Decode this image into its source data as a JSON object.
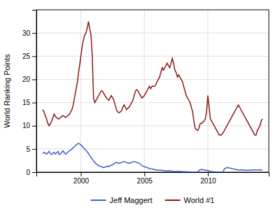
{
  "chart_data": {
    "type": "line",
    "ylabel": "World Ranking Points",
    "xlim": [
      1996.5,
      2014.8
    ],
    "xticks": [
      2000,
      2005,
      2010
    ],
    "ylim": [
      0,
      35
    ],
    "yticks": [
      0,
      5,
      10,
      15,
      20,
      25,
      30
    ],
    "grid": true,
    "legend": "bottom",
    "series": [
      {
        "name": "Jeff Maggert",
        "color": "#4060c8",
        "x": [
          1997.0,
          1997.1,
          1997.2,
          1997.3,
          1997.4,
          1997.5,
          1997.6,
          1997.7,
          1997.8,
          1997.9,
          1998.0,
          1998.1,
          1998.2,
          1998.3,
          1998.4,
          1998.5,
          1998.6,
          1998.7,
          1998.8,
          1998.9,
          1999.0,
          1999.1,
          1999.2,
          1999.3,
          1999.4,
          1999.5,
          1999.6,
          1999.7,
          1999.8,
          1999.9,
          2000.0,
          2000.1,
          2000.2,
          2000.3,
          2000.4,
          2000.5,
          2000.6,
          2000.7,
          2000.8,
          2000.9,
          2001.0,
          2001.1,
          2001.2,
          2001.3,
          2001.4,
          2001.5,
          2001.6,
          2001.7,
          2001.8,
          2001.9,
          2002.0,
          2002.1,
          2002.2,
          2002.3,
          2002.4,
          2002.5,
          2002.6,
          2002.7,
          2002.8,
          2002.9,
          2003.0,
          2003.1,
          2003.2,
          2003.3,
          2003.4,
          2003.5,
          2003.6,
          2003.7,
          2003.8,
          2003.9,
          2004.0,
          2004.1,
          2004.2,
          2004.3,
          2004.4,
          2004.5,
          2004.6,
          2004.7,
          2004.8,
          2004.9,
          2005.0,
          2005.1,
          2005.2,
          2005.3,
          2005.4,
          2005.5,
          2005.6,
          2005.7,
          2005.8,
          2005.9,
          2006.0,
          2006.2,
          2006.4,
          2006.6,
          2006.8,
          2007.0,
          2007.2,
          2007.4,
          2007.6,
          2007.8,
          2008.0,
          2008.3,
          2008.6,
          2008.9,
          2009.0,
          2009.2,
          2009.3,
          2009.5,
          2009.7,
          2009.9,
          2010.0,
          2010.2,
          2010.4,
          2010.6,
          2010.8,
          2011.0,
          2011.2,
          2011.3,
          2011.5,
          2011.7,
          2011.9,
          2012.0,
          2012.2,
          2012.4,
          2012.6,
          2012.8,
          2013.0,
          2013.2,
          2013.5,
          2013.8,
          2014.0,
          2014.3
        ],
        "values": [
          4.0,
          4.3,
          4.1,
          3.9,
          4.2,
          4.5,
          4.0,
          3.8,
          4.1,
          4.3,
          3.9,
          4.2,
          4.5,
          3.8,
          4.0,
          4.3,
          4.6,
          4.2,
          3.9,
          4.1,
          4.4,
          4.6,
          4.8,
          5.0,
          5.3,
          5.5,
          5.8,
          6.0,
          6.2,
          6.1,
          5.9,
          5.6,
          5.3,
          5.0,
          4.7,
          4.4,
          4.0,
          3.6,
          3.2,
          2.8,
          2.4,
          2.1,
          1.8,
          1.6,
          1.4,
          1.3,
          1.2,
          1.1,
          1.0,
          1.1,
          1.2,
          1.3,
          1.2,
          1.4,
          1.5,
          1.6,
          1.8,
          2.0,
          2.1,
          2.0,
          1.9,
          2.0,
          2.1,
          2.2,
          2.3,
          2.2,
          2.1,
          2.0,
          1.9,
          2.0,
          2.1,
          2.2,
          2.3,
          2.2,
          2.1,
          2.0,
          1.9,
          1.7,
          1.5,
          1.3,
          1.2,
          1.1,
          1.0,
          0.9,
          0.8,
          0.7,
          0.7,
          0.6,
          0.6,
          0.5,
          0.5,
          0.4,
          0.4,
          0.3,
          0.3,
          0.3,
          0.2,
          0.2,
          0.2,
          0.2,
          0.15,
          0.1,
          0.05,
          0.05,
          0.05,
          0.05,
          0.4,
          0.6,
          0.5,
          0.4,
          0.35,
          0.2,
          0.1,
          0.05,
          0.05,
          0.05,
          0.05,
          0.7,
          1.0,
          0.9,
          0.8,
          0.7,
          0.6,
          0.5,
          0.5,
          0.5,
          0.4,
          0.4,
          0.5,
          0.5,
          0.5,
          0.5
        ]
      },
      {
        "name": "World #1",
        "color": "#8b1a1a",
        "x": [
          1997.0,
          1997.1,
          1997.2,
          1997.3,
          1997.4,
          1997.5,
          1997.6,
          1997.7,
          1997.8,
          1997.9,
          1998.0,
          1998.1,
          1998.2,
          1998.3,
          1998.4,
          1998.5,
          1998.6,
          1998.7,
          1998.8,
          1998.9,
          1999.0,
          1999.1,
          1999.2,
          1999.3,
          1999.4,
          1999.5,
          1999.6,
          1999.7,
          1999.8,
          1999.9,
          2000.0,
          2000.1,
          2000.2,
          2000.3,
          2000.4,
          2000.5,
          2000.6,
          2000.7,
          2000.8,
          2000.9,
          2001.0,
          2001.1,
          2001.2,
          2001.3,
          2001.4,
          2001.5,
          2001.6,
          2001.7,
          2001.8,
          2001.9,
          2002.0,
          2002.1,
          2002.2,
          2002.3,
          2002.4,
          2002.5,
          2002.6,
          2002.7,
          2002.8,
          2002.9,
          2003.0,
          2003.1,
          2003.2,
          2003.3,
          2003.4,
          2003.5,
          2003.6,
          2003.7,
          2003.8,
          2003.9,
          2004.0,
          2004.1,
          2004.2,
          2004.3,
          2004.4,
          2004.5,
          2004.6,
          2004.7,
          2004.8,
          2004.9,
          2005.0,
          2005.1,
          2005.2,
          2005.3,
          2005.4,
          2005.5,
          2005.6,
          2005.7,
          2005.8,
          2005.9,
          2006.0,
          2006.1,
          2006.2,
          2006.3,
          2006.4,
          2006.5,
          2006.6,
          2006.7,
          2006.8,
          2006.9,
          2007.0,
          2007.1,
          2007.2,
          2007.3,
          2007.4,
          2007.5,
          2007.6,
          2007.7,
          2007.8,
          2007.9,
          2008.0,
          2008.1,
          2008.2,
          2008.3,
          2008.4,
          2008.5,
          2008.6,
          2008.7,
          2008.8,
          2008.9,
          2009.0,
          2009.1,
          2009.2,
          2009.3,
          2009.4,
          2009.5,
          2009.6,
          2009.7,
          2009.8,
          2009.9,
          2010.0,
          2010.1,
          2010.2,
          2010.3,
          2010.4,
          2010.5,
          2010.6,
          2010.7,
          2010.8,
          2010.9,
          2011.0,
          2011.1,
          2011.2,
          2011.3,
          2011.4,
          2011.5,
          2011.6,
          2011.7,
          2011.8,
          2011.9,
          2012.0,
          2012.1,
          2012.2,
          2012.3,
          2012.4,
          2012.5,
          2012.6,
          2012.7,
          2012.8,
          2012.9,
          2013.0,
          2013.1,
          2013.2,
          2013.3,
          2013.4,
          2013.5,
          2013.6,
          2013.7,
          2013.8,
          2013.9,
          2014.0,
          2014.1,
          2014.2,
          2014.3
        ],
        "values": [
          13.5,
          13.0,
          12.2,
          11.5,
          10.5,
          10.0,
          10.5,
          11.0,
          11.8,
          12.5,
          12.0,
          11.8,
          11.5,
          11.5,
          11.8,
          12.0,
          12.2,
          12.0,
          11.8,
          12.0,
          12.2,
          12.5,
          13.0,
          13.5,
          14.5,
          16.0,
          17.5,
          19.0,
          21.0,
          23.0,
          25.0,
          27.0,
          28.5,
          29.5,
          30.0,
          31.0,
          32.5,
          31.0,
          29.5,
          25.0,
          16.0,
          15.0,
          15.5,
          16.0,
          16.5,
          17.0,
          17.5,
          17.5,
          17.0,
          16.5,
          16.0,
          15.8,
          15.5,
          16.0,
          16.5,
          16.0,
          15.5,
          14.5,
          13.5,
          13.0,
          12.8,
          13.0,
          13.2,
          14.0,
          14.5,
          14.0,
          13.5,
          13.8,
          14.0,
          14.5,
          15.0,
          15.5,
          16.5,
          17.5,
          17.8,
          17.5,
          17.0,
          16.5,
          16.0,
          16.2,
          16.5,
          17.0,
          17.5,
          18.0,
          18.5,
          18.0,
          18.5,
          18.5,
          18.5,
          18.8,
          19.5,
          20.0,
          20.5,
          21.5,
          22.5,
          22.0,
          22.5,
          23.0,
          23.5,
          23.0,
          22.5,
          23.5,
          24.5,
          23.5,
          22.0,
          21.5,
          20.5,
          21.0,
          20.5,
          20.0,
          19.5,
          18.5,
          17.5,
          16.5,
          16.0,
          15.5,
          15.0,
          14.0,
          13.0,
          11.0,
          9.5,
          9.2,
          9.0,
          9.5,
          10.5,
          10.5,
          10.8,
          11.0,
          11.5,
          13.0,
          16.5,
          14.0,
          11.5,
          11.0,
          10.5,
          10.0,
          9.5,
          9.0,
          8.5,
          8.0,
          8.0,
          8.2,
          8.5,
          9.0,
          9.5,
          10.0,
          10.5,
          11.0,
          11.5,
          12.0,
          12.5,
          13.0,
          13.5,
          14.0,
          14.5,
          14.0,
          13.5,
          13.0,
          12.5,
          12.0,
          11.5,
          11.0,
          10.5,
          10.0,
          9.5,
          9.0,
          8.5,
          8.0,
          8.0,
          9.0,
          9.5,
          10.0,
          11.0,
          11.5
        ]
      }
    ]
  }
}
